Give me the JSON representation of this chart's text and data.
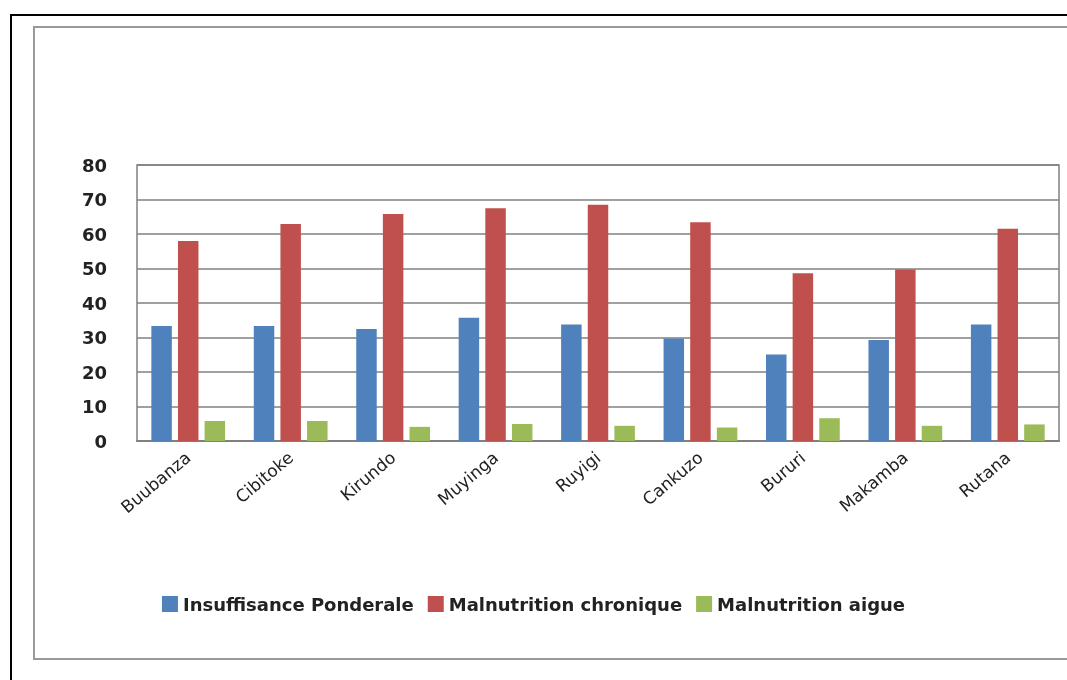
{
  "chart_data": {
    "type": "bar",
    "categories": [
      "Buubanza",
      "Cibitoke",
      "Kirundo",
      "Muyinga",
      "Ruyigi",
      "Cankuzo",
      "Bururi",
      "Makamba",
      "Rutana"
    ],
    "series": [
      {
        "name": "Insuffisance Ponderale",
        "color": "#4f81bd",
        "values": [
          33.3,
          33.3,
          32.5,
          35.7,
          33.8,
          29.7,
          25.1,
          29.3,
          33.8
        ]
      },
      {
        "name": "Malnutrition chronique",
        "color": "#c0504d",
        "values": [
          58,
          62.9,
          65.8,
          67.5,
          68.5,
          63.4,
          48.6,
          49.7,
          61.5
        ]
      },
      {
        "name": "Malnutrition aigue",
        "color": "#9bbb59",
        "values": [
          5.8,
          5.8,
          4.1,
          4.9,
          4.4,
          3.9,
          6.6,
          4.4,
          4.8
        ]
      }
    ],
    "ylim": [
      0,
      80
    ],
    "yticks": [
      0,
      10,
      20,
      30,
      40,
      50,
      60,
      70,
      80
    ],
    "grid": "y",
    "legend": "bottom"
  }
}
